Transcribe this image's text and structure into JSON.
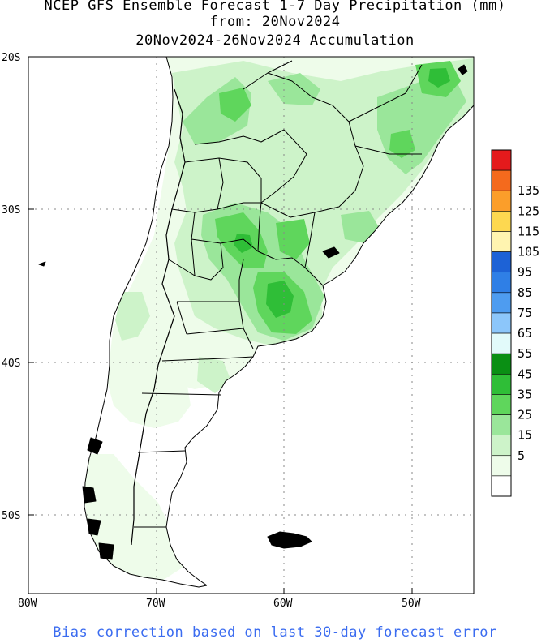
{
  "header": {
    "title_line1": "NCEP GFS Ensemble Forecast 1-7 Day Precipitation (mm)",
    "title_line2": "from: 20Nov2024",
    "title_line3": "20Nov2024-26Nov2024 Accumulation"
  },
  "map": {
    "lat_labels": [
      "20S",
      "30S",
      "40S",
      "50S"
    ],
    "lon_labels": [
      "80W",
      "70W",
      "60W",
      "50W"
    ],
    "land_color": "#ffffff",
    "border_color": "#000000"
  },
  "colorbar": {
    "labels": [
      "135",
      "125",
      "115",
      "105",
      "95",
      "85",
      "75",
      "65",
      "55",
      "45",
      "35",
      "25",
      "15",
      "5"
    ],
    "colors": [
      "#e41a1c",
      "#f46a1d",
      "#fb9e2a",
      "#fdd850",
      "#fff4b0",
      "#1d62d6",
      "#2f7fe6",
      "#4e9cf0",
      "#8cc6fa",
      "#e2fafa",
      "#0a8f14",
      "#2fbe37",
      "#5fd65c",
      "#9ae69a",
      "#cdf3c9",
      "#eefcea",
      "#ffffff"
    ]
  },
  "footer": {
    "note": "Bias correction based on last 30-day forecast error"
  }
}
